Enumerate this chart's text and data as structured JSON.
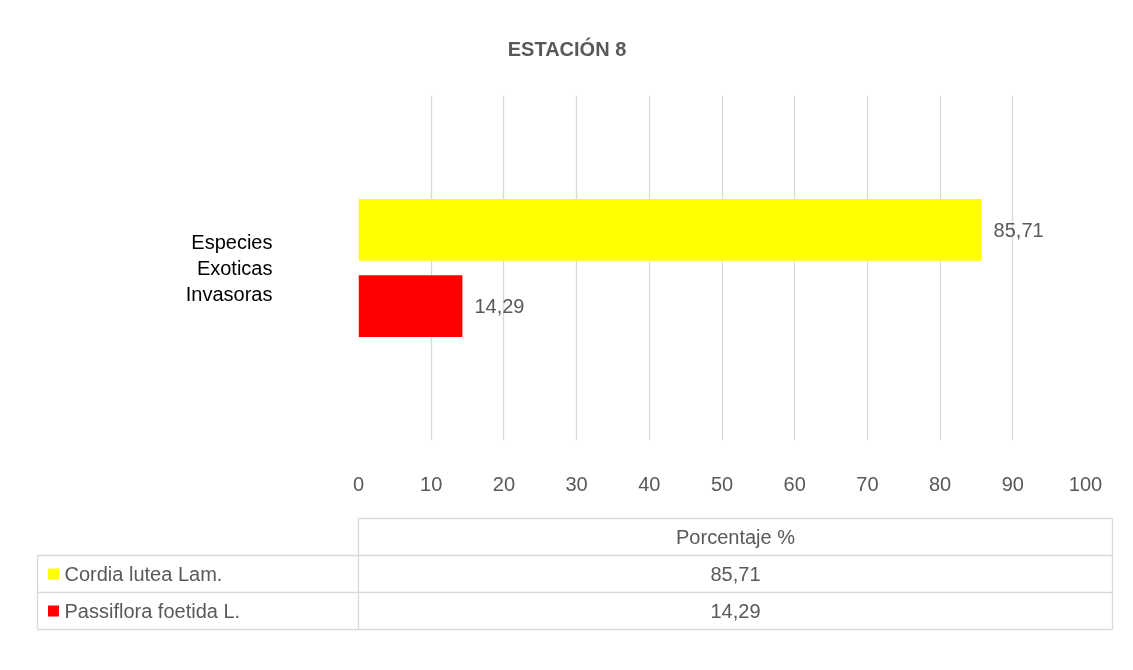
{
  "chart_data": {
    "type": "bar",
    "orientation": "horizontal",
    "title": "ESTACIÓN 8",
    "xlabel": "Porcentaje %",
    "categories": [
      "Especies Exoticas Invasoras"
    ],
    "series": [
      {
        "name": "Cordia lutea Lam.",
        "color": "#ffff00",
        "values": [
          85.71
        ],
        "value_labels": [
          "85,71"
        ]
      },
      {
        "name": "Passiflora foetida L.",
        "color": "#ff0000",
        "values": [
          14.29
        ],
        "value_labels": [
          "14,29"
        ]
      }
    ],
    "xlim": [
      0,
      100
    ],
    "xticks": [
      0,
      10,
      20,
      30,
      40,
      50,
      60,
      70,
      80,
      90,
      100
    ],
    "grid": "x",
    "legend": "bottom"
  }
}
